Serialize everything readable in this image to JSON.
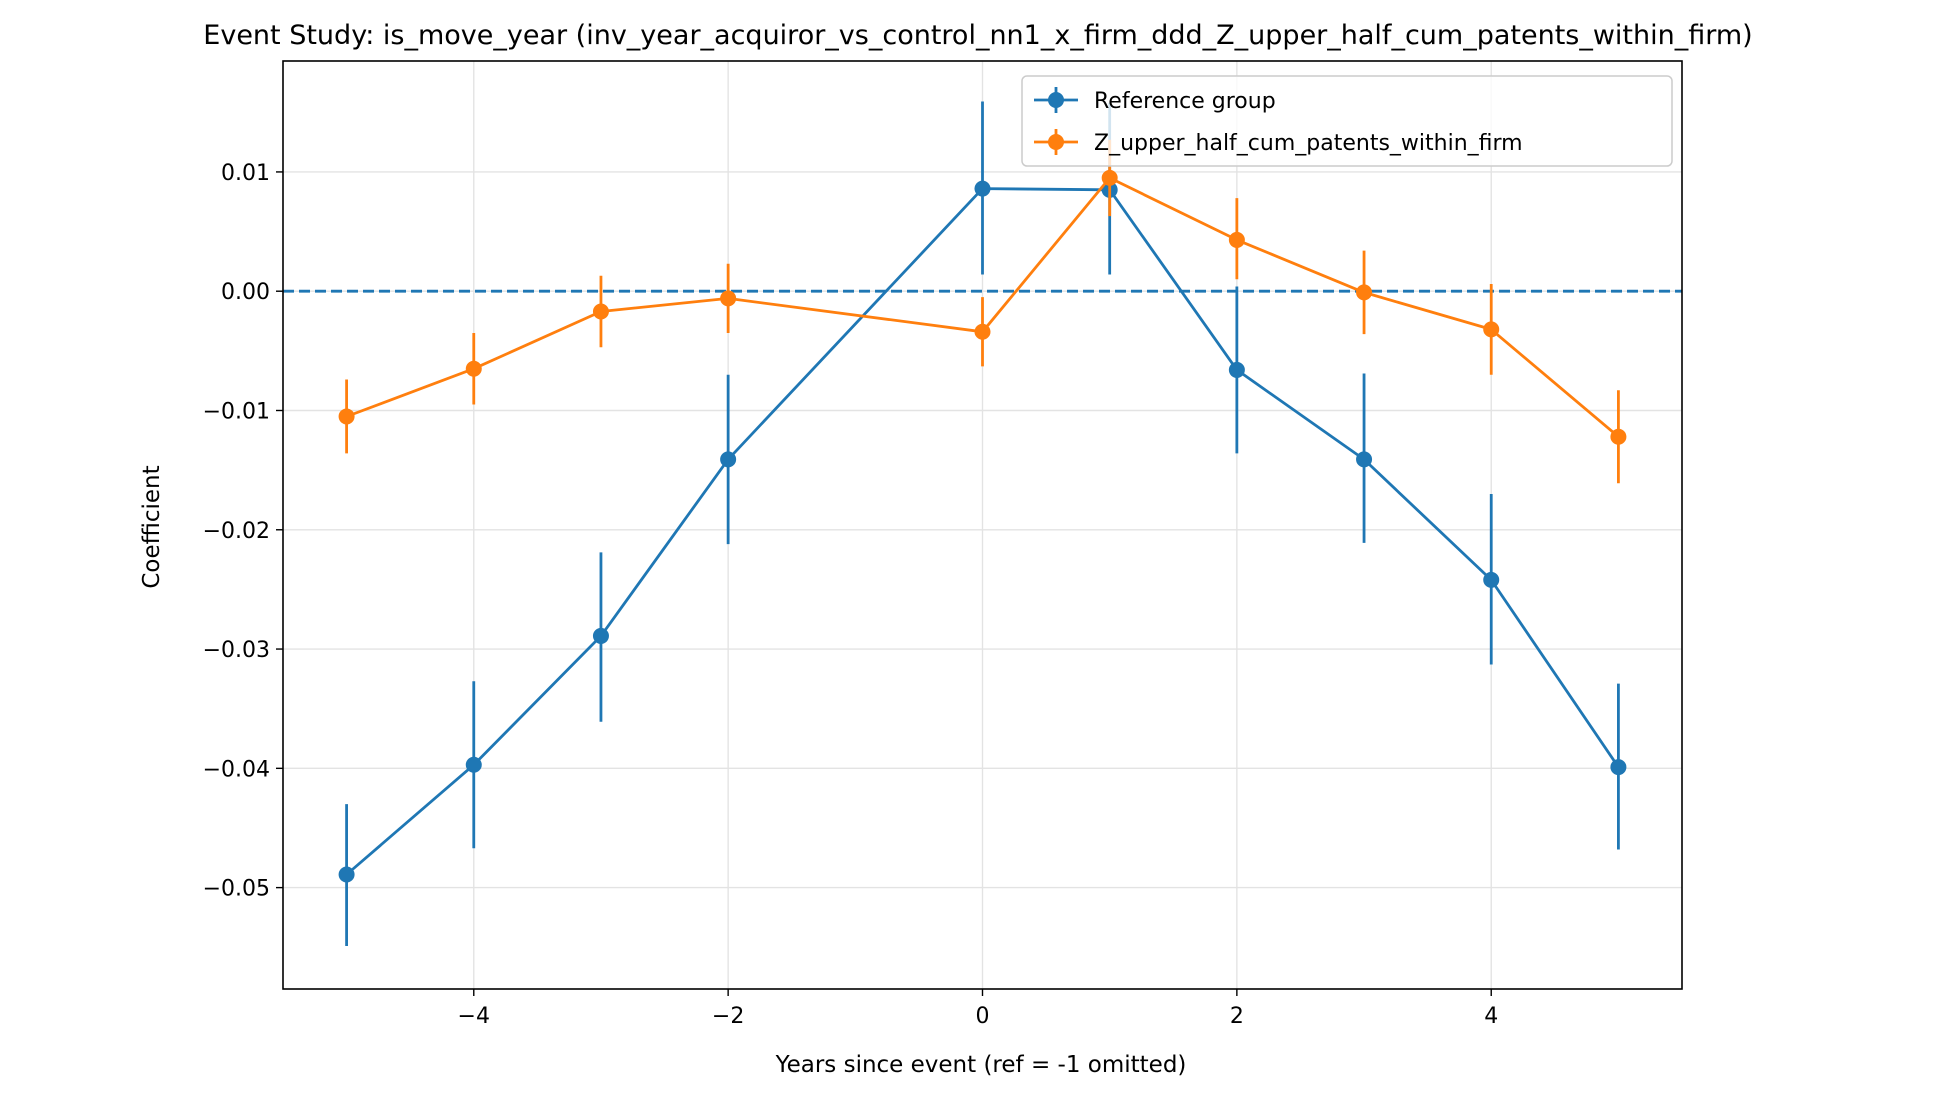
{
  "chart_data": {
    "type": "line",
    "title": "Event Study: is_move_year (inv_year_acquiror_vs_control_nn1_x_firm_ddd_Z_upper_half_cum_patents_within_firm)",
    "xlabel": "Years since event (ref = -1 omitted)",
    "ylabel": "Coefficient",
    "xlim": [
      -5.5,
      5.5
    ],
    "ylim": [
      -0.0585,
      0.0193
    ],
    "xticks": [
      -4,
      -2,
      0,
      2,
      4
    ],
    "xtick_labels": [
      "−4",
      "−2",
      "0",
      "2",
      "4"
    ],
    "yticks": [
      0.01,
      0.0,
      -0.01,
      -0.02,
      -0.03,
      -0.04,
      -0.05
    ],
    "ytick_labels": [
      "0.01",
      "0.00",
      "−0.01",
      "−0.02",
      "−0.03",
      "−0.04",
      "−0.05"
    ],
    "grid": true,
    "legend_position": "top-right",
    "reference_line": {
      "y": 0,
      "style": "dashed",
      "color": "#1f77b4"
    },
    "x": [
      -5,
      -4,
      -3,
      -2,
      0,
      1,
      2,
      3,
      4,
      5
    ],
    "series": [
      {
        "name": "Reference group",
        "color": "#1f77b4",
        "values": [
          -0.0489,
          -0.0397,
          -0.0289,
          -0.0141,
          0.0086,
          0.0085,
          -0.0066,
          -0.0141,
          -0.0242,
          -0.0399
        ],
        "ci_low": [
          -0.0549,
          -0.0467,
          -0.0361,
          -0.0212,
          0.0014,
          0.0014,
          -0.0136,
          -0.0211,
          -0.0313,
          -0.0468
        ],
        "ci_high": [
          -0.043,
          -0.0327,
          -0.0219,
          -0.007,
          0.0159,
          0.0158,
          0.0004,
          -0.0069,
          -0.017,
          -0.0329
        ]
      },
      {
        "name": "Z_upper_half_cum_patents_within_firm",
        "color": "#ff7f0e",
        "values": [
          -0.0105,
          -0.0065,
          -0.0017,
          -0.0006,
          -0.0034,
          0.0095,
          0.0043,
          -0.0001,
          -0.0032,
          -0.0122
        ],
        "ci_low": [
          -0.0136,
          -0.0095,
          -0.0047,
          -0.0035,
          -0.0063,
          0.0063,
          0.001,
          -0.0036,
          -0.007,
          -0.0161
        ],
        "ci_high": [
          -0.0074,
          -0.0035,
          0.0013,
          0.0023,
          -0.0005,
          0.0127,
          0.0078,
          0.0034,
          0.0006,
          -0.0083
        ]
      }
    ]
  }
}
